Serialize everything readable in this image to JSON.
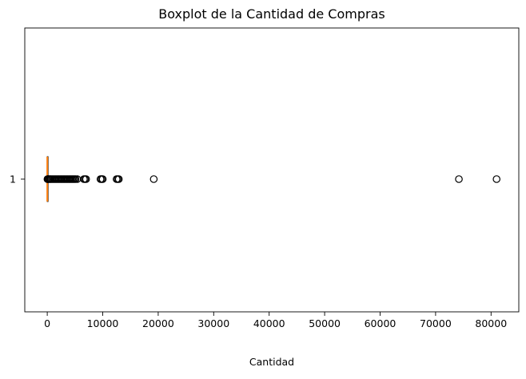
{
  "chart_data": {
    "type": "boxplot",
    "orientation": "horizontal",
    "title": "Boxplot de la Cantidad de Compras",
    "xlabel": "Cantidad",
    "ylabel": "",
    "xlim": [
      -4050,
      85000
    ],
    "x_ticks": [
      0,
      10000,
      20000,
      30000,
      40000,
      50000,
      60000,
      70000,
      80000
    ],
    "x_tick_labels": [
      "0",
      "10000",
      "20000",
      "30000",
      "40000",
      "50000",
      "60000",
      "70000",
      "80000"
    ],
    "categories": [
      "1"
    ],
    "grid": false,
    "box": {
      "q1": 2,
      "median": 5,
      "q3": 12,
      "whisker_low": 1,
      "whisker_high": 27,
      "outliers": [
        40,
        80,
        150,
        250,
        400,
        550,
        700,
        900,
        1100,
        1300,
        1500,
        1700,
        1900,
        2100,
        2300,
        2500,
        2700,
        2900,
        3100,
        3300,
        3500,
        3700,
        3900,
        4100,
        4300,
        4500,
        4700,
        4900,
        5100,
        5400,
        6600,
        6800,
        7000,
        9600,
        9800,
        10000,
        12500,
        12700,
        12900,
        19200,
        74200,
        80995
      ]
    },
    "colors": {
      "median": "#ff7f0e",
      "box": "#000000",
      "flier": "#000000",
      "background": "#ffffff"
    }
  }
}
